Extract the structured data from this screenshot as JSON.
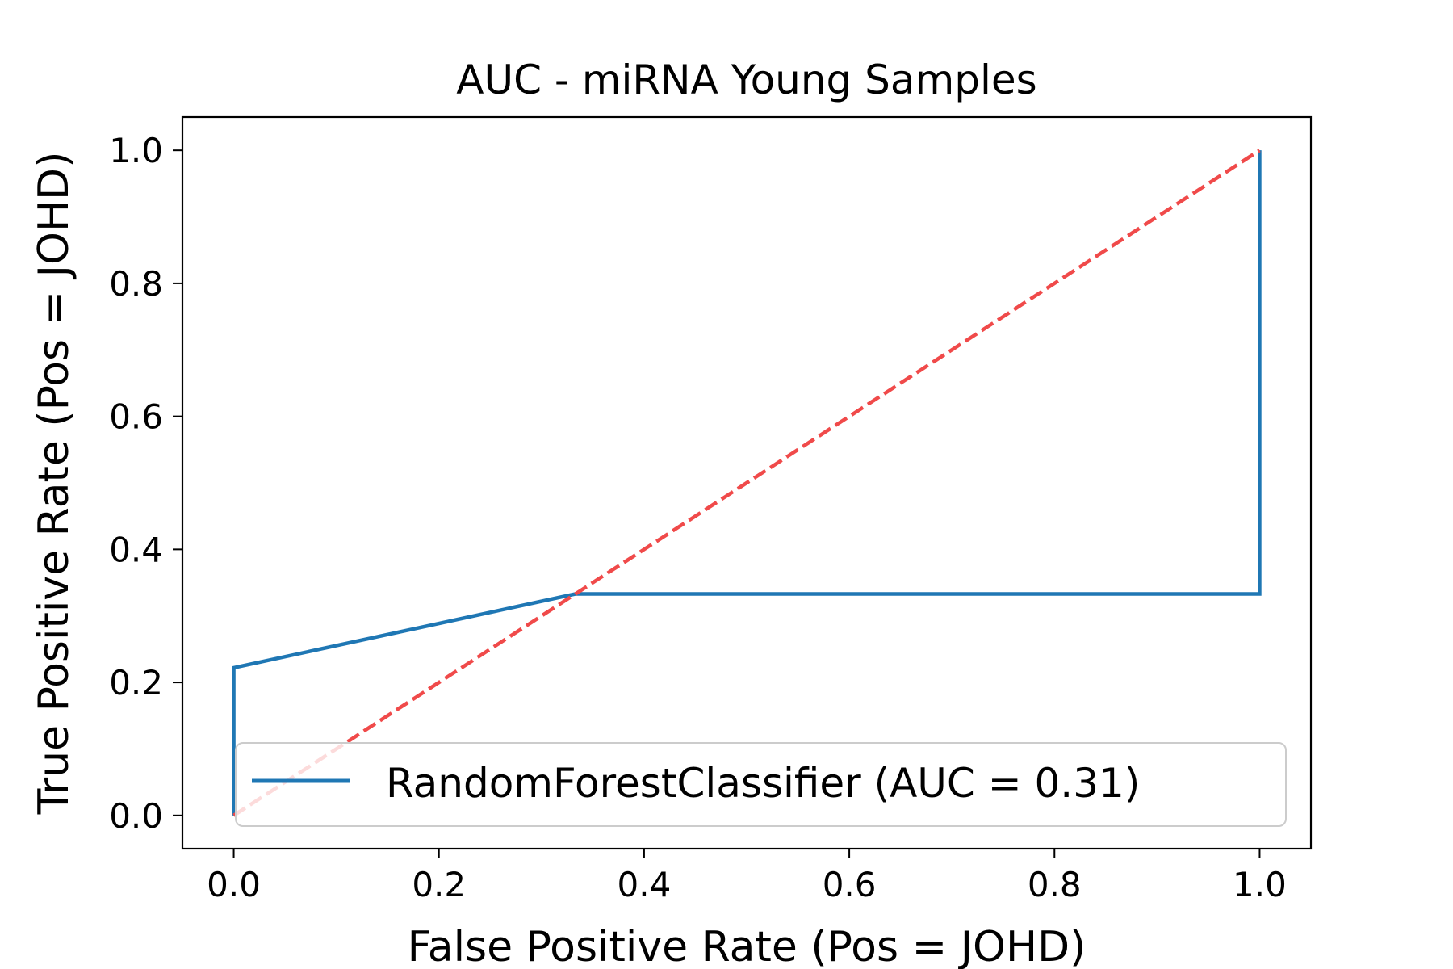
{
  "chart_data": {
    "type": "line",
    "title": "AUC - miRNA Young Samples",
    "xlabel": "False Positive Rate (Pos = JOHD)",
    "ylabel": "True Positive Rate (Pos = JOHD)",
    "xlim": [
      -0.05,
      1.05
    ],
    "ylim": [
      -0.05,
      1.05
    ],
    "xticks": [
      0.0,
      0.2,
      0.4,
      0.6,
      0.8,
      1.0
    ],
    "yticks": [
      0.0,
      0.2,
      0.4,
      0.6,
      0.8,
      1.0
    ],
    "xtick_labels": [
      "0.0",
      "0.2",
      "0.4",
      "0.6",
      "0.8",
      "1.0"
    ],
    "ytick_labels": [
      "0.0",
      "0.2",
      "0.4",
      "0.6",
      "0.8",
      "1.0"
    ],
    "grid": false,
    "legend_position": "lower-right",
    "series": [
      {
        "name": "RandomForestClassifier (AUC = 0.31)",
        "color": "#1f77b4",
        "style": "solid",
        "x": [
          0.0,
          0.0,
          0.333,
          1.0,
          1.0
        ],
        "y": [
          0.0,
          0.222,
          0.333,
          0.333,
          1.0
        ]
      },
      {
        "color": "#f04a4a",
        "style": "dashed",
        "x": [
          0.0,
          1.0
        ],
        "y": [
          0.0,
          1.0
        ]
      }
    ]
  }
}
